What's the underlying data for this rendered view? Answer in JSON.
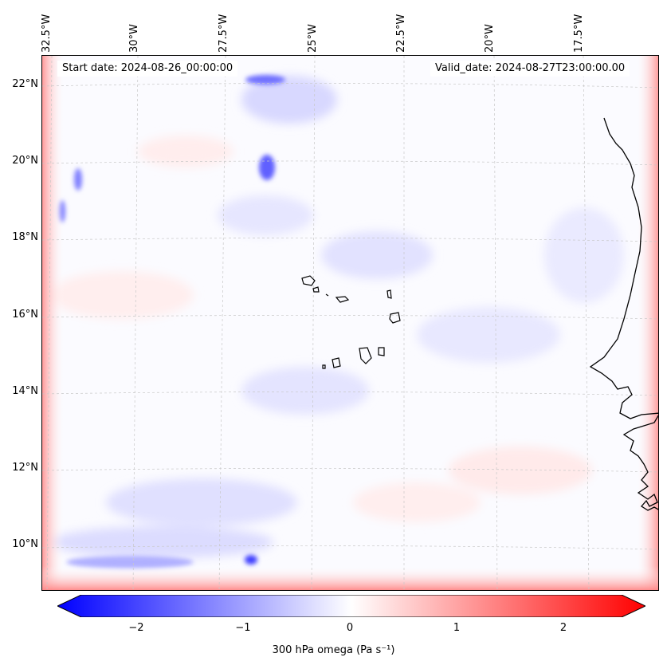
{
  "map": {
    "start_date": "Start date: 2024-08-26_00:00:00",
    "valid_date": "Valid_date: 2024-08-27T23:00:00.00",
    "lon_labels": [
      "32.5°W",
      "30°W",
      "27.5°W",
      "25°W",
      "22.5°W",
      "20°W",
      "17.5°W"
    ],
    "lat_labels": [
      "22°N",
      "20°N",
      "18°N",
      "16°N",
      "14°N",
      "12°N",
      "10°N"
    ],
    "field_colors": {
      "negative": "#0000ff",
      "zero": "#ffffff",
      "positive": "#ff0000"
    }
  },
  "colorbar": {
    "label": "300 hPa omega (Pa s⁻¹)",
    "ticks": [
      "−2",
      "−1",
      "0",
      "1",
      "2"
    ],
    "range": [
      -2.7,
      2.7
    ]
  }
}
